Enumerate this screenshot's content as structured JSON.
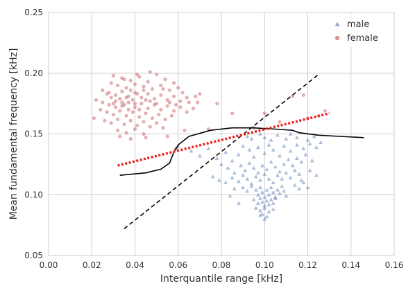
{
  "chart_data": {
    "type": "scatter",
    "title": "",
    "xlabel": "Interquantile range [kHz]",
    "ylabel": "Mean fundamental frequency [kHz]",
    "xlim": [
      0.0,
      0.16
    ],
    "ylim": [
      0.05,
      0.25
    ],
    "x_ticks": [
      "0.00",
      "0.02",
      "0.04",
      "0.06",
      "0.08",
      "0.10",
      "0.12",
      "0.14",
      "0.16"
    ],
    "y_ticks": [
      "0.05",
      "0.10",
      "0.15",
      "0.20",
      "0.25"
    ],
    "grid": true,
    "legend_position": "top-right",
    "colors": {
      "male": "#4c72b0",
      "female": "#c44e52",
      "decision_boundary": "#000000",
      "dashed_line": "#000000",
      "dotted_line": "#e8231b",
      "grid": "#cccccc",
      "axes_edge": "#cccccc"
    },
    "series": [
      {
        "name": "male",
        "marker": "triangle",
        "points": [
          [
            0.092,
            0.148
          ],
          [
            0.094,
            0.146
          ],
          [
            0.098,
            0.15
          ],
          [
            0.1,
            0.147
          ],
          [
            0.103,
            0.145
          ],
          [
            0.106,
            0.149
          ],
          [
            0.11,
            0.146
          ],
          [
            0.112,
            0.15
          ],
          [
            0.115,
            0.147
          ],
          [
            0.12,
            0.145
          ],
          [
            0.123,
            0.148
          ],
          [
            0.126,
            0.143
          ],
          [
            0.06,
            0.14
          ],
          [
            0.066,
            0.136
          ],
          [
            0.07,
            0.132
          ],
          [
            0.074,
            0.138
          ],
          [
            0.078,
            0.13
          ],
          [
            0.082,
            0.135
          ],
          [
            0.085,
            0.128
          ],
          [
            0.088,
            0.133
          ],
          [
            0.09,
            0.14
          ],
          [
            0.093,
            0.137
          ],
          [
            0.095,
            0.131
          ],
          [
            0.097,
            0.139
          ],
          [
            0.1,
            0.134
          ],
          [
            0.102,
            0.141
          ],
          [
            0.104,
            0.137
          ],
          [
            0.107,
            0.132
          ],
          [
            0.109,
            0.14
          ],
          [
            0.112,
            0.136
          ],
          [
            0.115,
            0.141
          ],
          [
            0.118,
            0.138
          ],
          [
            0.121,
            0.142
          ],
          [
            0.124,
            0.139
          ],
          [
            0.08,
            0.125
          ],
          [
            0.083,
            0.122
          ],
          [
            0.086,
            0.118
          ],
          [
            0.089,
            0.124
          ],
          [
            0.091,
            0.12
          ],
          [
            0.093,
            0.126
          ],
          [
            0.095,
            0.122
          ],
          [
            0.097,
            0.118
          ],
          [
            0.099,
            0.124
          ],
          [
            0.101,
            0.121
          ],
          [
            0.103,
            0.127
          ],
          [
            0.105,
            0.123
          ],
          [
            0.107,
            0.119
          ],
          [
            0.109,
            0.125
          ],
          [
            0.111,
            0.129
          ],
          [
            0.113,
            0.124
          ],
          [
            0.115,
            0.13
          ],
          [
            0.117,
            0.127
          ],
          [
            0.119,
            0.133
          ],
          [
            0.122,
            0.128
          ],
          [
            0.076,
            0.115
          ],
          [
            0.079,
            0.112
          ],
          [
            0.082,
            0.11
          ],
          [
            0.085,
            0.114
          ],
          [
            0.088,
            0.111
          ],
          [
            0.09,
            0.116
          ],
          [
            0.092,
            0.113
          ],
          [
            0.094,
            0.109
          ],
          [
            0.096,
            0.115
          ],
          [
            0.098,
            0.112
          ],
          [
            0.1,
            0.117
          ],
          [
            0.102,
            0.113
          ],
          [
            0.104,
            0.11
          ],
          [
            0.106,
            0.116
          ],
          [
            0.108,
            0.113
          ],
          [
            0.11,
            0.118
          ],
          [
            0.112,
            0.114
          ],
          [
            0.114,
            0.12
          ],
          [
            0.116,
            0.117
          ],
          [
            0.09,
            0.106
          ],
          [
            0.092,
            0.103
          ],
          [
            0.094,
            0.107
          ],
          [
            0.096,
            0.104
          ],
          [
            0.097,
            0.1
          ],
          [
            0.098,
            0.106
          ],
          [
            0.099,
            0.102
          ],
          [
            0.1,
            0.098
          ],
          [
            0.101,
            0.104
          ],
          [
            0.102,
            0.1
          ],
          [
            0.103,
            0.106
          ],
          [
            0.104,
            0.102
          ],
          [
            0.105,
            0.098
          ],
          [
            0.106,
            0.104
          ],
          [
            0.107,
            0.101
          ],
          [
            0.108,
            0.107
          ],
          [
            0.109,
            0.103
          ],
          [
            0.11,
            0.099
          ],
          [
            0.095,
            0.096
          ],
          [
            0.097,
            0.093
          ],
          [
            0.098,
            0.097
          ],
          [
            0.099,
            0.094
          ],
          [
            0.1,
            0.091
          ],
          [
            0.101,
            0.095
          ],
          [
            0.102,
            0.092
          ],
          [
            0.103,
            0.096
          ],
          [
            0.104,
            0.093
          ],
          [
            0.105,
            0.097
          ],
          [
            0.096,
            0.089
          ],
          [
            0.098,
            0.087
          ],
          [
            0.1,
            0.089
          ],
          [
            0.102,
            0.086
          ],
          [
            0.104,
            0.088
          ],
          [
            0.099,
            0.084
          ],
          [
            0.101,
            0.082
          ],
          [
            0.1,
            0.08
          ],
          [
            0.098,
            0.083
          ],
          [
            0.114,
            0.108
          ],
          [
            0.116,
            0.105
          ],
          [
            0.118,
            0.11
          ],
          [
            0.12,
            0.106
          ],
          [
            0.117,
            0.112
          ],
          [
            0.121,
            0.12
          ],
          [
            0.124,
            0.116
          ],
          [
            0.086,
            0.105
          ],
          [
            0.084,
            0.099
          ],
          [
            0.088,
            0.093
          ]
        ]
      },
      {
        "name": "female",
        "marker": "circle",
        "points": [
          [
            0.03,
            0.198
          ],
          [
            0.034,
            0.196
          ],
          [
            0.038,
            0.194
          ],
          [
            0.042,
            0.197
          ],
          [
            0.046,
            0.193
          ],
          [
            0.05,
            0.199
          ],
          [
            0.054,
            0.195
          ],
          [
            0.058,
            0.192
          ],
          [
            0.032,
            0.19
          ],
          [
            0.036,
            0.188
          ],
          [
            0.04,
            0.191
          ],
          [
            0.044,
            0.189
          ],
          [
            0.048,
            0.187
          ],
          [
            0.052,
            0.19
          ],
          [
            0.056,
            0.186
          ],
          [
            0.06,
            0.188
          ],
          [
            0.025,
            0.186
          ],
          [
            0.028,
            0.184
          ],
          [
            0.031,
            0.182
          ],
          [
            0.034,
            0.185
          ],
          [
            0.037,
            0.181
          ],
          [
            0.04,
            0.184
          ],
          [
            0.043,
            0.18
          ],
          [
            0.046,
            0.183
          ],
          [
            0.049,
            0.179
          ],
          [
            0.052,
            0.182
          ],
          [
            0.055,
            0.178
          ],
          [
            0.058,
            0.181
          ],
          [
            0.061,
            0.177
          ],
          [
            0.064,
            0.18
          ],
          [
            0.022,
            0.178
          ],
          [
            0.025,
            0.176
          ],
          [
            0.028,
            0.174
          ],
          [
            0.031,
            0.177
          ],
          [
            0.034,
            0.173
          ],
          [
            0.037,
            0.176
          ],
          [
            0.04,
            0.172
          ],
          [
            0.043,
            0.175
          ],
          [
            0.046,
            0.171
          ],
          [
            0.049,
            0.174
          ],
          [
            0.052,
            0.17
          ],
          [
            0.055,
            0.173
          ],
          [
            0.058,
            0.169
          ],
          [
            0.061,
            0.172
          ],
          [
            0.064,
            0.168
          ],
          [
            0.067,
            0.171
          ],
          [
            0.024,
            0.17
          ],
          [
            0.027,
            0.168
          ],
          [
            0.03,
            0.166
          ],
          [
            0.033,
            0.169
          ],
          [
            0.036,
            0.165
          ],
          [
            0.039,
            0.168
          ],
          [
            0.042,
            0.164
          ],
          [
            0.045,
            0.167
          ],
          [
            0.048,
            0.163
          ],
          [
            0.051,
            0.166
          ],
          [
            0.054,
            0.162
          ],
          [
            0.057,
            0.165
          ],
          [
            0.021,
            0.163
          ],
          [
            0.026,
            0.161
          ],
          [
            0.029,
            0.159
          ],
          [
            0.032,
            0.162
          ],
          [
            0.035,
            0.158
          ],
          [
            0.038,
            0.161
          ],
          [
            0.041,
            0.157
          ],
          [
            0.044,
            0.16
          ],
          [
            0.047,
            0.156
          ],
          [
            0.05,
            0.159
          ],
          [
            0.053,
            0.155
          ],
          [
            0.032,
            0.153
          ],
          [
            0.036,
            0.151
          ],
          [
            0.04,
            0.154
          ],
          [
            0.044,
            0.15
          ],
          [
            0.033,
            0.148
          ],
          [
            0.038,
            0.146
          ],
          [
            0.045,
            0.147
          ],
          [
            0.035,
            0.195
          ],
          [
            0.041,
            0.199
          ],
          [
            0.047,
            0.201
          ],
          [
            0.029,
            0.192
          ],
          [
            0.033,
            0.179
          ],
          [
            0.035,
            0.174
          ],
          [
            0.037,
            0.17
          ],
          [
            0.039,
            0.178
          ],
          [
            0.041,
            0.183
          ],
          [
            0.038,
            0.186
          ],
          [
            0.036,
            0.18
          ],
          [
            0.034,
            0.176
          ],
          [
            0.031,
            0.172
          ],
          [
            0.029,
            0.18
          ],
          [
            0.044,
            0.186
          ],
          [
            0.047,
            0.177
          ],
          [
            0.05,
            0.175
          ],
          [
            0.053,
            0.187
          ],
          [
            0.056,
            0.176
          ],
          [
            0.059,
            0.174
          ],
          [
            0.062,
            0.184
          ],
          [
            0.065,
            0.176
          ],
          [
            0.068,
            0.181
          ],
          [
            0.07,
            0.183
          ],
          [
            0.069,
            0.176
          ],
          [
            0.078,
            0.175
          ],
          [
            0.074,
            0.154
          ],
          [
            0.055,
            0.148
          ],
          [
            0.059,
            0.138
          ],
          [
            0.063,
            0.153
          ],
          [
            0.085,
            0.167
          ],
          [
            0.1,
            0.167
          ],
          [
            0.113,
            0.181
          ],
          [
            0.118,
            0.182
          ],
          [
            0.128,
            0.169
          ],
          [
            0.125,
            0.165
          ],
          [
            0.12,
            0.163
          ],
          [
            0.107,
            0.16
          ],
          [
            0.095,
            0.155
          ],
          [
            0.04,
            0.175
          ],
          [
            0.042,
            0.17
          ],
          [
            0.03,
            0.175
          ],
          [
            0.027,
            0.183
          ],
          [
            0.045,
            0.178
          ]
        ]
      }
    ],
    "lines": [
      {
        "name": "decision_boundary",
        "style": "solid",
        "points": [
          [
            0.033,
            0.116
          ],
          [
            0.045,
            0.118
          ],
          [
            0.052,
            0.121
          ],
          [
            0.056,
            0.126
          ],
          [
            0.058,
            0.135
          ],
          [
            0.06,
            0.141
          ],
          [
            0.065,
            0.148
          ],
          [
            0.075,
            0.153
          ],
          [
            0.085,
            0.155
          ],
          [
            0.095,
            0.155
          ],
          [
            0.105,
            0.154
          ],
          [
            0.113,
            0.153
          ],
          [
            0.116,
            0.151
          ],
          [
            0.125,
            0.149
          ],
          [
            0.135,
            0.148
          ],
          [
            0.146,
            0.147
          ]
        ]
      },
      {
        "name": "dashed_diagonal",
        "style": "dashed",
        "points": [
          [
            0.035,
            0.072
          ],
          [
            0.125,
            0.199
          ]
        ]
      },
      {
        "name": "dotted_fit",
        "style": "dotted",
        "points": [
          [
            0.032,
            0.124
          ],
          [
            0.13,
            0.167
          ]
        ]
      }
    ]
  }
}
